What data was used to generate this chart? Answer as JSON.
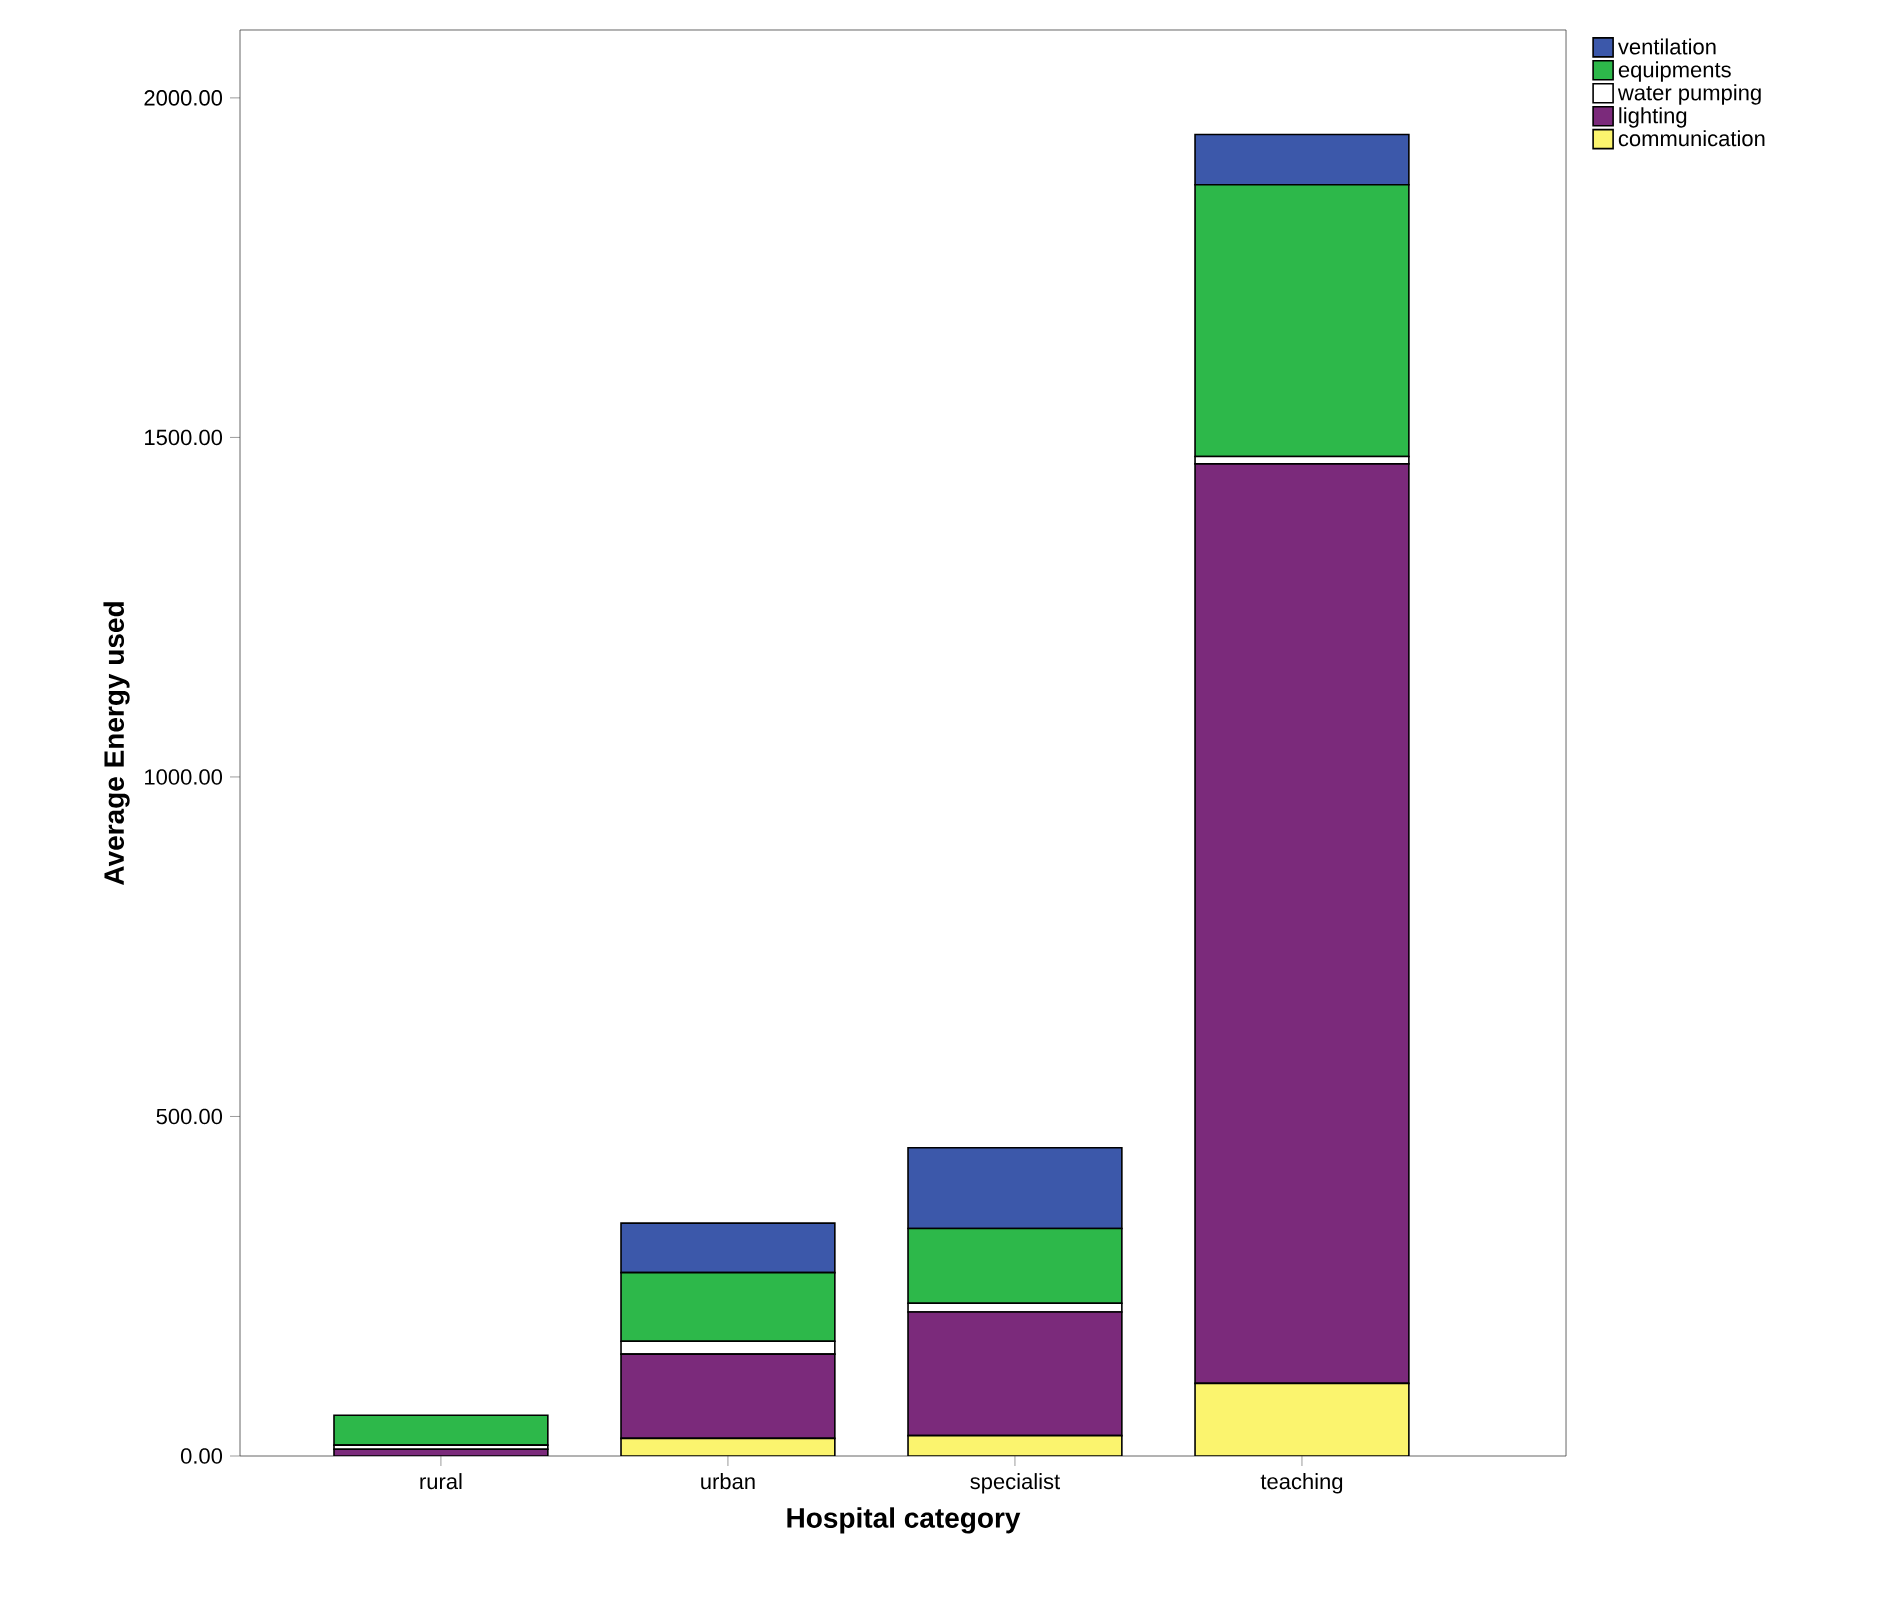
{
  "chart_data": {
    "type": "bar",
    "stacked": true,
    "xlabel": "Hospital category",
    "ylabel": "Average Energy used",
    "categories": [
      "rural",
      "urban",
      "specialist",
      "teaching"
    ],
    "series": [
      {
        "name": "communication",
        "color": "#fbf46e",
        "values": [
          null,
          26,
          30,
          107
        ]
      },
      {
        "name": "lighting",
        "color": "#7b2a7b",
        "values": [
          10,
          124,
          182,
          1354
        ]
      },
      {
        "name": "water pumping",
        "color": "#ffffff",
        "values": [
          6,
          19,
          13,
          11
        ]
      },
      {
        "name": "equipments",
        "color": "#2db84a",
        "values": [
          44,
          101,
          110,
          400
        ]
      },
      {
        "name": "ventilation",
        "color": "#3c58aa",
        "values": [
          null,
          73,
          119,
          74
        ]
      }
    ],
    "ylim": [
      0,
      2100
    ],
    "yticks": [
      {
        "value": 0,
        "label": "0.00"
      },
      {
        "value": 500,
        "label": "500.00"
      },
      {
        "value": 1000,
        "label": "1000.00"
      },
      {
        "value": 1500,
        "label": "1500.00"
      },
      {
        "value": 2000,
        "label": "2000.00"
      }
    ],
    "grid": false,
    "legend": "top right"
  }
}
